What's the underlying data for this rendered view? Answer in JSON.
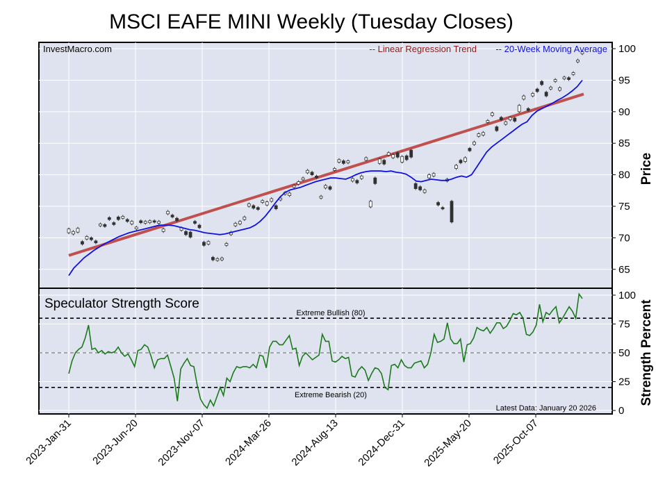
{
  "title": "MSCI EAFE MINI Weekly (Tuesday Closes)",
  "watermark": "InvestMacro.com",
  "legend": {
    "regression": "-- Linear Regression Trend",
    "ma": "-- 20-Week Moving Average"
  },
  "colors": {
    "panel_bg": "#dfe3ef",
    "grid": "#ffffff",
    "regression": "#c0504d",
    "regression_text": "#8b1a1a",
    "ma": "#1010e0",
    "ma_text": "#1010e0",
    "score": "#1a7a1a",
    "candle_up": "#ffffff",
    "candle_down": "#303030"
  },
  "chart_data": [
    {
      "type": "candlestick",
      "ylabel": "Price",
      "ylim": [
        62,
        101
      ],
      "yticks": [
        65,
        70,
        75,
        80,
        85,
        90,
        95,
        100
      ],
      "regression_trend": {
        "start": 67.2,
        "end": 92.8
      },
      "moving_average": [
        64.0,
        65.2,
        66.0,
        66.8,
        67.4,
        68.0,
        68.5,
        69.0,
        69.4,
        69.8,
        70.2,
        70.5,
        70.8,
        71.0,
        71.2,
        71.4,
        71.6,
        71.8,
        72.0,
        72.0,
        72.0,
        71.9,
        71.7,
        71.5,
        71.3,
        71.2,
        71.0,
        70.8,
        70.7,
        70.6,
        70.5,
        70.6,
        70.8,
        71.0,
        71.2,
        71.4,
        71.6,
        72.0,
        72.6,
        73.4,
        74.4,
        75.5,
        76.5,
        77.2,
        77.6,
        77.8,
        78.0,
        78.3,
        78.6,
        78.9,
        79.1,
        79.3,
        79.5,
        79.5,
        79.4,
        79.3,
        79.6,
        80.0,
        80.3,
        80.5,
        80.6,
        80.6,
        80.6,
        80.5,
        80.6,
        80.4,
        80.3,
        80.1,
        79.6,
        79.0,
        78.9,
        79.1,
        79.3,
        79.2,
        79.1,
        79.1,
        79.3,
        79.6,
        79.8,
        79.6,
        80.0,
        81.2,
        82.4,
        83.6,
        84.4,
        85.0,
        85.6,
        86.2,
        86.8,
        87.4,
        88.0,
        88.4,
        89.4,
        90.1,
        90.5,
        90.9,
        91.3,
        91.8,
        92.2,
        92.7,
        93.3,
        94.0,
        95.0
      ],
      "candles": [
        {
          "o": 70.8,
          "c": 71.4
        },
        {
          "o": 70.6,
          "c": 71.0
        },
        {
          "o": 70.9,
          "c": 71.5
        },
        {
          "o": 69.4,
          "c": 69.0
        },
        {
          "o": 69.8,
          "c": 70.2
        },
        {
          "o": 70.0,
          "c": 69.7
        },
        {
          "o": 69.5,
          "c": 69.2
        },
        {
          "o": 71.9,
          "c": 72.2
        },
        {
          "o": 72.1,
          "c": 71.8
        },
        {
          "o": 73.2,
          "c": 72.9
        },
        {
          "o": 72.4,
          "c": 72.1
        },
        {
          "o": 73.3,
          "c": 72.9
        },
        {
          "o": 73.1,
          "c": 73.4
        },
        {
          "o": 72.9,
          "c": 72.6
        },
        {
          "o": 72.2,
          "c": 72.6
        },
        {
          "o": 71.4,
          "c": 71.7
        },
        {
          "o": 72.7,
          "c": 72.4
        },
        {
          "o": 72.3,
          "c": 72.6
        },
        {
          "o": 72.4,
          "c": 72.7
        },
        {
          "o": 72.7,
          "c": 72.5
        },
        {
          "o": 72.3,
          "c": 72.6
        },
        {
          "o": 71.0,
          "c": 71.4
        },
        {
          "o": 73.8,
          "c": 74.2
        },
        {
          "o": 73.6,
          "c": 73.3
        },
        {
          "o": 73.1,
          "c": 72.7
        },
        {
          "o": 71.2,
          "c": 71.6
        },
        {
          "o": 71.0,
          "c": 70.5
        },
        {
          "o": 70.9,
          "c": 70.1
        },
        {
          "o": 72.6,
          "c": 72.3
        },
        {
          "o": 72.0,
          "c": 71.6
        },
        {
          "o": 69.3,
          "c": 68.8
        },
        {
          "o": 69.0,
          "c": 69.4
        },
        {
          "o": 66.9,
          "c": 66.5
        },
        {
          "o": 66.4,
          "c": 66.7
        },
        {
          "o": 66.5,
          "c": 66.8
        },
        {
          "o": 68.8,
          "c": 69.1
        },
        {
          "o": 70.5,
          "c": 70.9
        },
        {
          "o": 71.9,
          "c": 72.3
        },
        {
          "o": 72.2,
          "c": 72.6
        },
        {
          "o": 72.9,
          "c": 73.3
        },
        {
          "o": 75.0,
          "c": 75.4
        },
        {
          "o": 75.1,
          "c": 74.7
        },
        {
          "o": 74.8,
          "c": 74.5
        },
        {
          "o": 75.6,
          "c": 75.9
        },
        {
          "o": 75.2,
          "c": 75.7
        },
        {
          "o": 75.8,
          "c": 76.2
        },
        {
          "o": 75.1,
          "c": 74.6
        },
        {
          "o": 76.0,
          "c": 76.3
        },
        {
          "o": 76.9,
          "c": 77.2
        },
        {
          "o": 76.7,
          "c": 77.1
        },
        {
          "o": 78.0,
          "c": 78.3
        },
        {
          "o": 78.5,
          "c": 78.9
        },
        {
          "o": 79.2,
          "c": 79.5
        },
        {
          "o": 80.3,
          "c": 80.7
        },
        {
          "o": 80.4,
          "c": 80.0
        },
        {
          "o": 79.8,
          "c": 79.5
        },
        {
          "o": 76.3,
          "c": 76.6
        },
        {
          "o": 77.9,
          "c": 78.3
        },
        {
          "o": 78.1,
          "c": 77.7
        },
        {
          "o": 80.7,
          "c": 81.0
        },
        {
          "o": 82.0,
          "c": 82.4
        },
        {
          "o": 82.2,
          "c": 81.8
        },
        {
          "o": 81.9,
          "c": 82.2
        },
        {
          "o": 79.0,
          "c": 79.4
        },
        {
          "o": 79.1,
          "c": 78.7
        },
        {
          "o": 79.4,
          "c": 79.8
        },
        {
          "o": 82.3,
          "c": 82.7
        },
        {
          "o": 74.9,
          "c": 75.8
        },
        {
          "o": 79.5,
          "c": 78.6
        },
        {
          "o": 81.8,
          "c": 82.5
        },
        {
          "o": 82.3,
          "c": 81.7
        },
        {
          "o": 83.1,
          "c": 83.5
        },
        {
          "o": 82.7,
          "c": 83.2
        },
        {
          "o": 83.5,
          "c": 82.8
        },
        {
          "o": 82.0,
          "c": 82.9
        },
        {
          "o": 83.0,
          "c": 82.4
        },
        {
          "o": 83.9,
          "c": 82.8
        },
        {
          "o": 78.6,
          "c": 77.8
        },
        {
          "o": 78.1,
          "c": 77.6
        },
        {
          "o": 77.2,
          "c": 77.6
        },
        {
          "o": 79.5,
          "c": 80.0
        },
        {
          "o": 79.8,
          "c": 80.2
        },
        {
          "o": 75.6,
          "c": 75.2
        },
        {
          "o": 74.8,
          "c": 74.6
        },
        {
          "o": 79.0,
          "c": 79.3
        },
        {
          "o": 75.8,
          "c": 72.5
        },
        {
          "o": 81.0,
          "c": 81.5
        },
        {
          "o": 82.3,
          "c": 81.9
        },
        {
          "o": 82.1,
          "c": 82.7
        },
        {
          "o": 84.2,
          "c": 83.8
        },
        {
          "o": 84.8,
          "c": 85.2
        },
        {
          "o": 86.1,
          "c": 86.5
        },
        {
          "o": 86.3,
          "c": 86.7
        },
        {
          "o": 88.3,
          "c": 88.6
        },
        {
          "o": 89.4,
          "c": 89.8
        },
        {
          "o": 87.6,
          "c": 87.0
        },
        {
          "o": 89.1,
          "c": 88.7
        },
        {
          "o": 88.0,
          "c": 88.4
        },
        {
          "o": 88.7,
          "c": 89.1
        },
        {
          "o": 89.0,
          "c": 88.5
        },
        {
          "o": 90.0,
          "c": 91.0
        },
        {
          "o": 92.0,
          "c": 92.5
        },
        {
          "o": 90.5,
          "c": 90.2
        },
        {
          "o": 92.5,
          "c": 92.9
        },
        {
          "o": 93.6,
          "c": 93.2
        },
        {
          "o": 94.8,
          "c": 94.3
        },
        {
          "o": 93.1,
          "c": 92.5
        },
        {
          "o": 93.6,
          "c": 93.9
        },
        {
          "o": 94.8,
          "c": 95.1
        },
        {
          "o": 93.4,
          "c": 93.8
        },
        {
          "o": 95.2,
          "c": 95.5
        },
        {
          "o": 95.4,
          "c": 95.1
        },
        {
          "o": 95.9,
          "c": 96.2
        },
        {
          "o": 97.9,
          "c": 98.2
        },
        {
          "o": 99.2,
          "c": 99.5
        }
      ]
    },
    {
      "type": "line",
      "title": "Speculator Strength Score",
      "ylabel": "Strength Percent",
      "ylim": [
        -3,
        106
      ],
      "yticks": [
        0,
        25,
        50,
        75,
        100
      ],
      "thresholds": [
        {
          "value": 80,
          "label": "Extreme Bullish (80)"
        },
        {
          "value": 50,
          "label": ""
        },
        {
          "value": 20,
          "label": "Extreme Bearish (20)"
        }
      ],
      "note": "Latest Data: January 20 2026",
      "values": [
        32,
        43,
        50,
        53,
        55,
        63,
        74,
        53,
        54,
        50,
        52,
        49,
        51,
        50,
        51,
        55,
        50,
        47,
        49,
        44,
        38,
        52,
        53,
        57,
        55,
        47,
        37,
        44,
        45,
        45,
        48,
        38,
        28,
        8,
        36,
        41,
        45,
        39,
        38,
        22,
        10,
        5,
        2,
        9,
        4,
        12,
        20,
        13,
        28,
        25,
        33,
        38,
        37,
        38,
        38,
        37,
        40,
        37,
        48,
        47,
        37,
        55,
        60,
        60,
        57,
        57,
        61,
        65,
        53,
        54,
        39,
        47,
        50,
        47,
        44,
        46,
        48,
        66,
        60,
        60,
        43,
        42,
        44,
        47,
        45,
        46,
        30,
        29,
        35,
        38,
        35,
        26,
        32,
        37,
        36,
        32,
        20,
        18,
        39,
        40,
        37,
        44,
        39,
        37,
        37,
        41,
        42,
        43,
        37,
        40,
        50,
        66,
        59,
        60,
        62,
        76,
        62,
        58,
        58,
        62,
        42,
        57,
        58,
        63,
        72,
        70,
        69,
        72,
        67,
        71,
        76,
        76,
        71,
        73,
        78,
        84,
        83,
        85,
        80,
        66,
        65,
        68,
        74,
        92,
        77,
        85,
        83,
        87,
        90,
        76,
        80,
        85,
        90,
        86,
        80,
        101,
        97
      ]
    }
  ],
  "xticks": [
    "2023-Jan-31",
    "2023-Jun-20",
    "2023-Nov-07",
    "2024-Mar-26",
    "2024-Aug-13",
    "2024-Dec-31",
    "2025-May-20",
    "2025-Oct-07"
  ]
}
